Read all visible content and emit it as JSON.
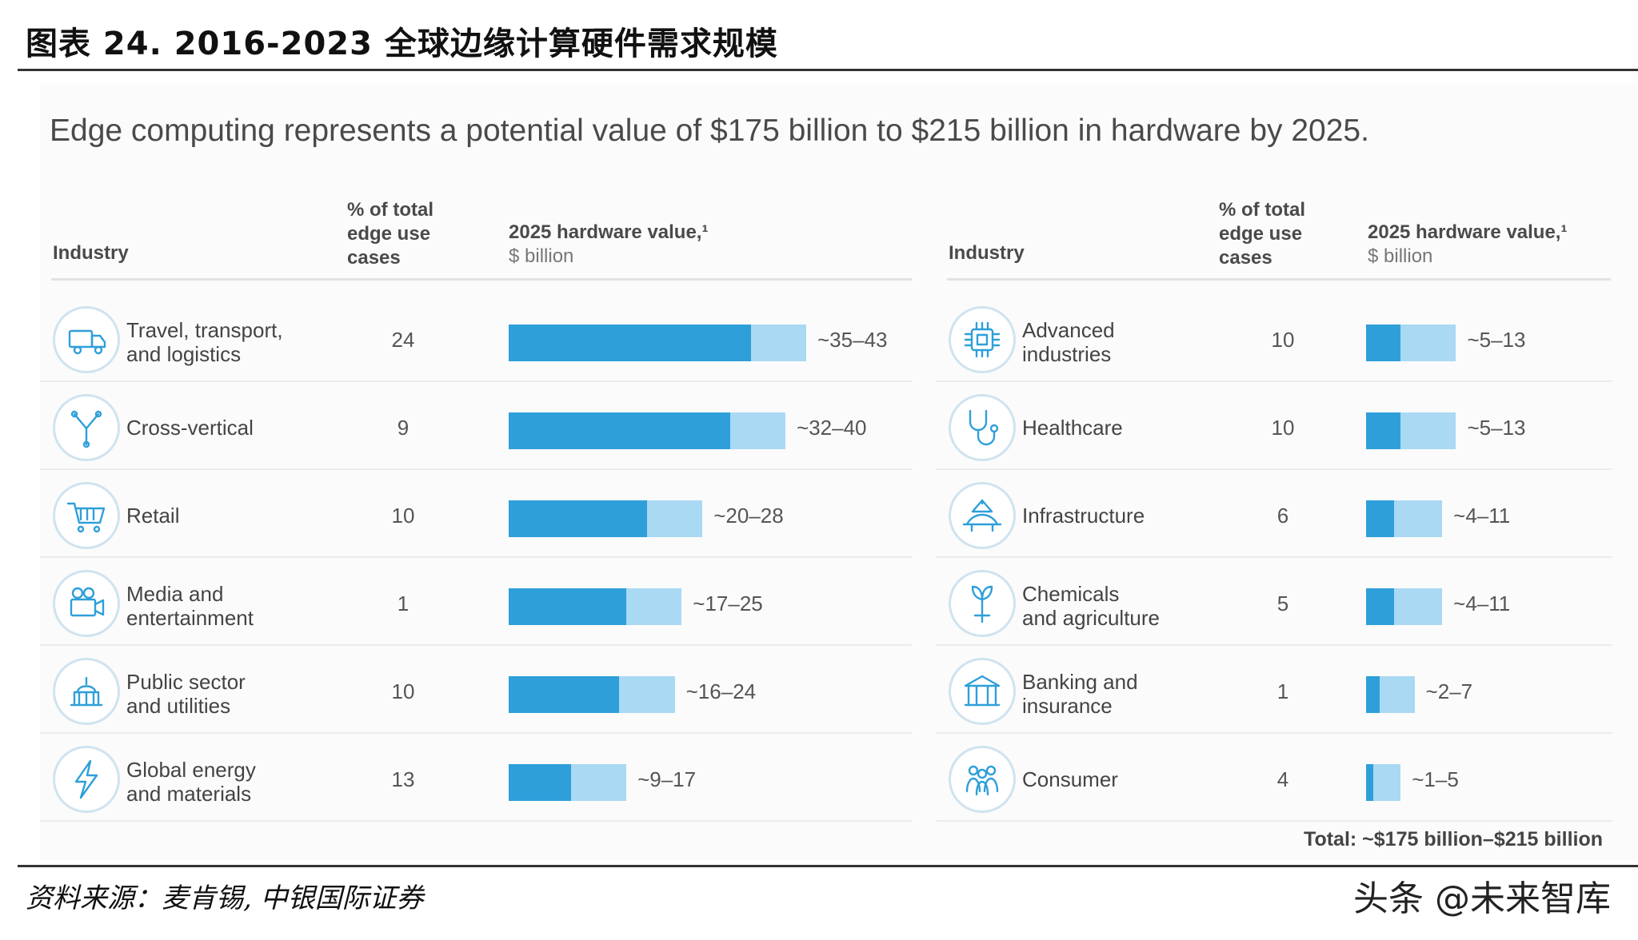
{
  "figure": {
    "title": "图表 24. 2016-2023 全球边缘计算硬件需求规模",
    "headline": "Edge computing represents a potential value of $175 billion to $215 billion in hardware by 2025.",
    "source": "资料来源：麦肯锡, 中银国际证券",
    "watermark": "头条 @未来智库",
    "total": "Total: ~$175 billion–$215 billion"
  },
  "headers": {
    "industry": "Industry",
    "pct": "% of total\nedge use\ncases",
    "value_title": "2025 hardware value,¹",
    "value_unit": "$ billion"
  },
  "colors": {
    "low": "#2e9fd9",
    "high": "#a9d9f3"
  },
  "chart_data": [
    {
      "type": "bar",
      "orientation": "horizontal",
      "stacked_range": true,
      "title": "2025 hardware value ($ billion) — left panel",
      "categories": [
        "Travel, transport, and logistics",
        "Cross-vertical",
        "Retail",
        "Media and entertainment",
        "Public sector and utilities",
        "Global energy and materials"
      ],
      "display_labels": [
        "Travel, transport,\nand logistics",
        "Cross-vertical",
        "Retail",
        "Media and\nentertainment",
        "Public sector\nand utilities",
        "Global energy\nand materials"
      ],
      "icons": [
        "truck-icon",
        "network-fork-icon",
        "shopping-cart-icon",
        "video-camera-icon",
        "capitol-building-icon",
        "lightning-bolt-icon"
      ],
      "pct_of_use_cases": [
        24,
        9,
        10,
        1,
        10,
        13
      ],
      "series": [
        {
          "name": "low",
          "values": [
            35,
            32,
            20,
            17,
            16,
            9
          ]
        },
        {
          "name": "high",
          "values": [
            43,
            40,
            28,
            25,
            24,
            17
          ]
        }
      ],
      "value_labels": [
        "~35–43",
        "~32–40",
        "~20–28",
        "~17–25",
        "~16–24",
        "~9–17"
      ],
      "xlim": [
        0,
        43
      ]
    },
    {
      "type": "bar",
      "orientation": "horizontal",
      "stacked_range": true,
      "title": "2025 hardware value ($ billion) — right panel",
      "categories": [
        "Advanced industries",
        "Healthcare",
        "Infrastructure",
        "Chemicals and agriculture",
        "Banking and insurance",
        "Consumer"
      ],
      "display_labels": [
        "Advanced\nindustries",
        "Healthcare",
        "Infrastructure",
        "Chemicals\nand agriculture",
        "Banking and\ninsurance",
        "Consumer"
      ],
      "icons": [
        "microchip-icon",
        "stethoscope-icon",
        "bridge-icon",
        "plant-icon",
        "bank-icon",
        "people-group-icon"
      ],
      "pct_of_use_cases": [
        10,
        10,
        6,
        5,
        1,
        4
      ],
      "series": [
        {
          "name": "low",
          "values": [
            5,
            5,
            4,
            4,
            2,
            1
          ]
        },
        {
          "name": "high",
          "values": [
            13,
            13,
            11,
            11,
            7,
            5
          ]
        }
      ],
      "value_labels": [
        "~5–13",
        "~5–13",
        "~4–11",
        "~4–11",
        "~2–7",
        "~1–5"
      ],
      "xlim": [
        0,
        43
      ]
    }
  ]
}
